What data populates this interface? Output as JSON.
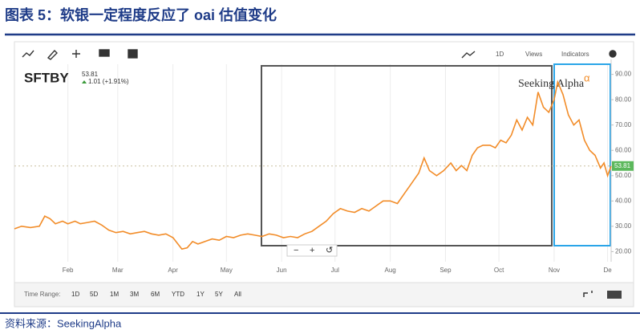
{
  "chart_data": {
    "type": "line",
    "title": "图表 5：软银一定程度反应了 oai 估值变化",
    "source": "资料来源：SeekingAlpha",
    "ticker": "SFTBY",
    "last_value": 53.81,
    "change": "1.01 (+1.91%)",
    "brand": "Seeking Alpha",
    "toolbar": [
      "1D",
      "Views",
      "Indicators"
    ],
    "time_range_label": "Time Range:",
    "time_ranges": [
      "1D",
      "5D",
      "1M",
      "3M",
      "6M",
      "YTD",
      "1Y",
      "5Y",
      "All"
    ],
    "xlim": [
      1,
      336
    ],
    "xticks": [
      {
        "value": 31,
        "label": "Feb"
      },
      {
        "value": 59,
        "label": "Mar"
      },
      {
        "value": 90,
        "label": "Apr"
      },
      {
        "value": 120,
        "label": "May"
      },
      {
        "value": 151,
        "label": "Jun"
      },
      {
        "value": 181,
        "label": "Jul"
      },
      {
        "value": 212,
        "label": "Aug"
      },
      {
        "value": 243,
        "label": "Sep"
      },
      {
        "value": 273,
        "label": "Oct"
      },
      {
        "value": 304,
        "label": "Nov"
      },
      {
        "value": 334,
        "label": "De"
      }
    ],
    "ylim": [
      16,
      94
    ],
    "yticks": [
      {
        "value": 20,
        "label": "20.00"
      },
      {
        "value": 30,
        "label": "30.00"
      },
      {
        "value": 40,
        "label": "40.00"
      },
      {
        "value": 50,
        "label": "50.00"
      },
      {
        "value": 60,
        "label": "60.00"
      },
      {
        "value": 70,
        "label": "70.00"
      },
      {
        "value": 80,
        "label": "80.00"
      },
      {
        "value": 90,
        "label": "90.00"
      }
    ],
    "grid": "x",
    "series": [
      {
        "name": "SFTBY",
        "color": "#f28c28",
        "x": [
          1,
          5,
          10,
          15,
          18,
          21,
          24,
          28,
          31,
          35,
          38,
          42,
          46,
          50,
          54,
          58,
          62,
          66,
          70,
          74,
          78,
          82,
          86,
          90,
          95,
          98,
          101,
          104,
          108,
          112,
          116,
          120,
          124,
          128,
          132,
          136,
          140,
          144,
          148,
          152,
          156,
          160,
          164,
          168,
          172,
          176,
          180,
          184,
          188,
          192,
          196,
          200,
          204,
          208,
          212,
          216,
          220,
          224,
          228,
          231,
          234,
          238,
          242,
          246,
          249,
          252,
          255,
          258,
          261,
          264,
          268,
          271,
          274,
          277,
          280,
          283,
          286,
          289,
          292,
          295,
          298,
          301,
          304,
          306,
          309,
          312,
          315,
          318,
          321,
          324,
          327,
          330,
          332,
          334,
          336
        ],
        "values": [
          29,
          30,
          29.5,
          30,
          34,
          33,
          31,
          32,
          31,
          32,
          31,
          31.5,
          32,
          30.5,
          28.5,
          27.5,
          28,
          27,
          27.5,
          28,
          27,
          26.5,
          27,
          25.5,
          21,
          21.5,
          24,
          23,
          24,
          25,
          24.5,
          26,
          25.5,
          26.5,
          27,
          26.5,
          26,
          27,
          26.5,
          25.5,
          26,
          25.5,
          27,
          28,
          30,
          32,
          35,
          37,
          36,
          35.5,
          37,
          36,
          38,
          40,
          40,
          39,
          43,
          47,
          51,
          57,
          52,
          50,
          52,
          55,
          52,
          54,
          52,
          58,
          61,
          62,
          62,
          61,
          64,
          63,
          66,
          72,
          68,
          73,
          70,
          83,
          77,
          75,
          80,
          87,
          82,
          74,
          70,
          72,
          64,
          60,
          58,
          53,
          55,
          50,
          53.81
        ]
      }
    ]
  }
}
